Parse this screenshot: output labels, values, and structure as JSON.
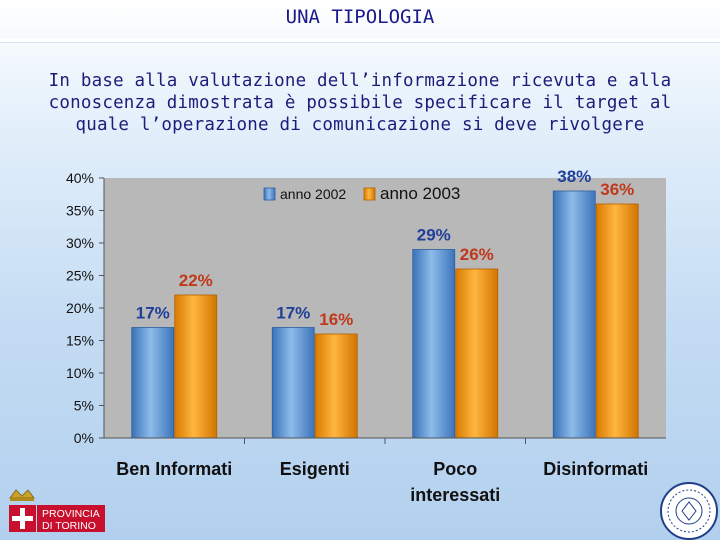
{
  "header": {
    "title": "UNA TIPOLOGIA",
    "subtitle_lines": [
      "In base alla valutazione dell’informazione ricevuta e alla",
      "conoscenza dimostrata è possibile specificare il target  al",
      "quale l’operazione di comunicazione si deve rivolgere"
    ]
  },
  "chart_data": {
    "type": "bar",
    "categories": [
      "Ben Informati",
      "Esigenti",
      "Poco interessati",
      "Disinformati"
    ],
    "category_lines": [
      [
        "Ben Informati"
      ],
      [
        "Esigenti"
      ],
      [
        "Poco",
        "interessati"
      ],
      [
        "Disinformati"
      ]
    ],
    "series": [
      {
        "name": "anno 2002",
        "values": [
          17,
          17,
          29,
          38
        ],
        "labels": [
          "17%",
          "17%",
          "29%",
          "38%"
        ],
        "color": "#5b9bd5",
        "label_color": "#1f3f99"
      },
      {
        "name": "anno 2003",
        "values": [
          22,
          16,
          26,
          36
        ],
        "labels": [
          "22%",
          "16%",
          "26%",
          "36%"
        ],
        "color": "#f59a0c",
        "label_color": "#c0391b"
      }
    ],
    "y_ticks": [
      "0%",
      "5%",
      "10%",
      "15%",
      "20%",
      "25%",
      "30%",
      "35%",
      "40%"
    ],
    "ylim": [
      0,
      40
    ],
    "legend_position": "top",
    "grid": false
  },
  "logo": {
    "text_lines": [
      "PROVINCIA",
      "DI TORINO"
    ]
  },
  "colors": {
    "title": "#1a1a8c",
    "plot_bg": "#b8b8b8"
  }
}
